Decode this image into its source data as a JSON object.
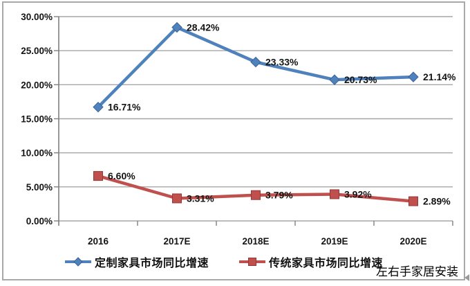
{
  "chart_data": {
    "type": "line",
    "title": "",
    "categories": [
      "2016",
      "2017E",
      "2018E",
      "2019E",
      "2020E"
    ],
    "series": [
      {
        "name": "定制家具市场同比增速",
        "values": [
          16.71,
          28.42,
          23.33,
          20.73,
          21.14
        ],
        "data_labels": [
          "16.71%",
          "28.42%",
          "23.33%",
          "20.73%",
          "21.14%"
        ],
        "color": "#4f81bd",
        "marker_edge": "#3a6497",
        "marker": "diamond"
      },
      {
        "name": "传统家具市场同比增速",
        "values": [
          6.6,
          3.31,
          3.79,
          3.92,
          2.89
        ],
        "data_labels": [
          "6.60%",
          "3.31%",
          "3.79%",
          "3.92%",
          "2.89%"
        ],
        "color": "#c0504d",
        "marker_edge": "#953735",
        "marker": "square"
      }
    ],
    "y_axis": {
      "min": 0,
      "max": 30,
      "step": 5,
      "tick_labels": [
        "0.00%",
        "5.00%",
        "10.00%",
        "15.00%",
        "20.00%",
        "25.00%",
        "30.00%"
      ]
    },
    "x_axis": {
      "tick_labels": [
        "2016",
        "2017E",
        "2018E",
        "2019E",
        "2020E"
      ]
    },
    "grid": true,
    "legend_position": "bottom"
  },
  "watermark": "左右手家居安装",
  "palette": {
    "gridline": "#a6a6a6",
    "axis": "#7f7f7f",
    "tick_text": "#141414",
    "data_label_text": "#141414",
    "frame_border": "#a8a8a8",
    "background": "#ffffff"
  }
}
